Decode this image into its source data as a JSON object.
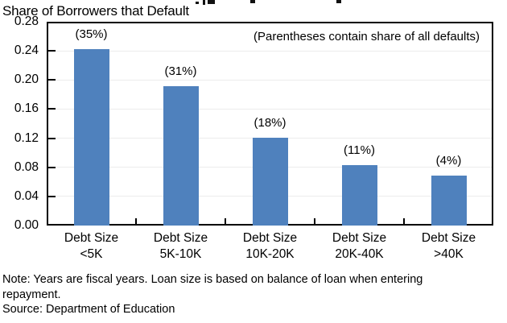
{
  "title": "Share of Borrowers that Default",
  "annotation": "(Parentheses contain share of all defaults)",
  "notes": [
    "Note: Years are fiscal years. Loan size is based on balance of loan when entering",
    "repayment.",
    "Source: Department of Education"
  ],
  "colors": {
    "bar": "#4f81bd",
    "gridline": "#ececec",
    "axis": "#000000",
    "text": "#000000"
  },
  "chart_data": {
    "type": "bar",
    "title": "Share of Borrowers that Default",
    "categories": [
      [
        "Debt Size",
        "<5K"
      ],
      [
        "Debt Size",
        "5K-10K"
      ],
      [
        "Debt Size",
        "10K-20K"
      ],
      [
        "Debt Size",
        "20K-40K"
      ],
      [
        "Debt Size",
        ">40K"
      ]
    ],
    "values": [
      0.242,
      0.191,
      0.121,
      0.083,
      0.069
    ],
    "bar_labels": [
      "(35%)",
      "(31%)",
      "(18%)",
      "(11%)",
      "(4%)"
    ],
    "ytick_labels": [
      "0.28",
      "0.24",
      "0.20",
      "0.16",
      "0.12",
      "0.08",
      "0.04",
      "0.00"
    ],
    "ylim": [
      0,
      0.28
    ],
    "xlabel": "",
    "ylabel": "",
    "grid": true,
    "legend": null,
    "annotation": "(Parentheses contain share of all defaults)"
  }
}
